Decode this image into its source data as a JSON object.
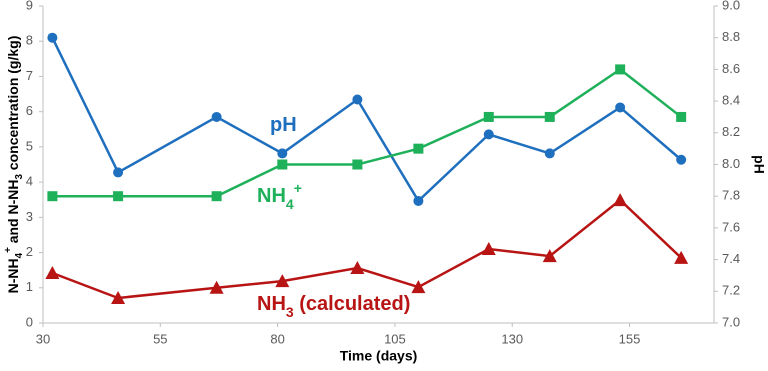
{
  "chart_data": {
    "type": "line",
    "xlabel": "Time (days)",
    "ylabel_parts": [
      {
        "text": "N-NH"
      },
      {
        "sub": "4"
      },
      {
        "sup": "+"
      },
      {
        "text": " and N-NH"
      },
      {
        "sub": "3"
      },
      {
        "text": " concentration (g/kg)"
      }
    ],
    "y2label": "pH",
    "xlim": [
      30,
      173
    ],
    "xticks": [
      30,
      55,
      80,
      105,
      130,
      155
    ],
    "ylim": [
      0,
      9
    ],
    "yticks": [
      0,
      1,
      2,
      3,
      4,
      5,
      6,
      7,
      8,
      9
    ],
    "y2lim": [
      7,
      9
    ],
    "y2ticks": [
      {
        "value": 7,
        "label": "7.0"
      },
      7.2,
      7.4,
      7.6,
      7.8,
      {
        "value": 8,
        "label": "8.0"
      },
      8.2,
      8.4,
      8.6,
      8.8,
      {
        "value": 9,
        "label": "9.0"
      }
    ],
    "grid": false,
    "series": [
      {
        "name": "pH",
        "label_parts": [
          {
            "text": "pH"
          }
        ],
        "color": "#1f6fbf",
        "marker": "circle",
        "axis": "y2",
        "x": [
          32,
          46,
          67,
          81,
          97,
          110,
          125,
          138,
          153,
          166
        ],
        "values": [
          8.8,
          7.95,
          8.3,
          8.07,
          8.41,
          7.77,
          8.19,
          8.07,
          8.36,
          8.03
        ]
      },
      {
        "name": "NH4+",
        "label_parts": [
          {
            "text": "NH"
          },
          {
            "sub": "4"
          },
          {
            "sup": "+"
          }
        ],
        "color": "#1fb05a",
        "marker": "square",
        "x": [
          32,
          46,
          67,
          81,
          97,
          110,
          125,
          138,
          153,
          166
        ],
        "values": [
          3.6,
          3.6,
          3.6,
          4.5,
          4.5,
          4.95,
          5.85,
          5.85,
          7.2,
          5.85
        ]
      },
      {
        "name": "NH3 (calculated)",
        "label_parts": [
          {
            "text": "NH"
          },
          {
            "sub": "3"
          },
          {
            "text": " (calculated)"
          }
        ],
        "color": "#b81414",
        "marker": "triangle",
        "x": [
          32,
          46,
          67,
          81,
          97,
          110,
          125,
          138,
          153,
          166
        ],
        "values": [
          1.42,
          0.71,
          1.0,
          1.19,
          1.56,
          1.02,
          2.1,
          1.9,
          3.49,
          1.85
        ]
      }
    ]
  }
}
